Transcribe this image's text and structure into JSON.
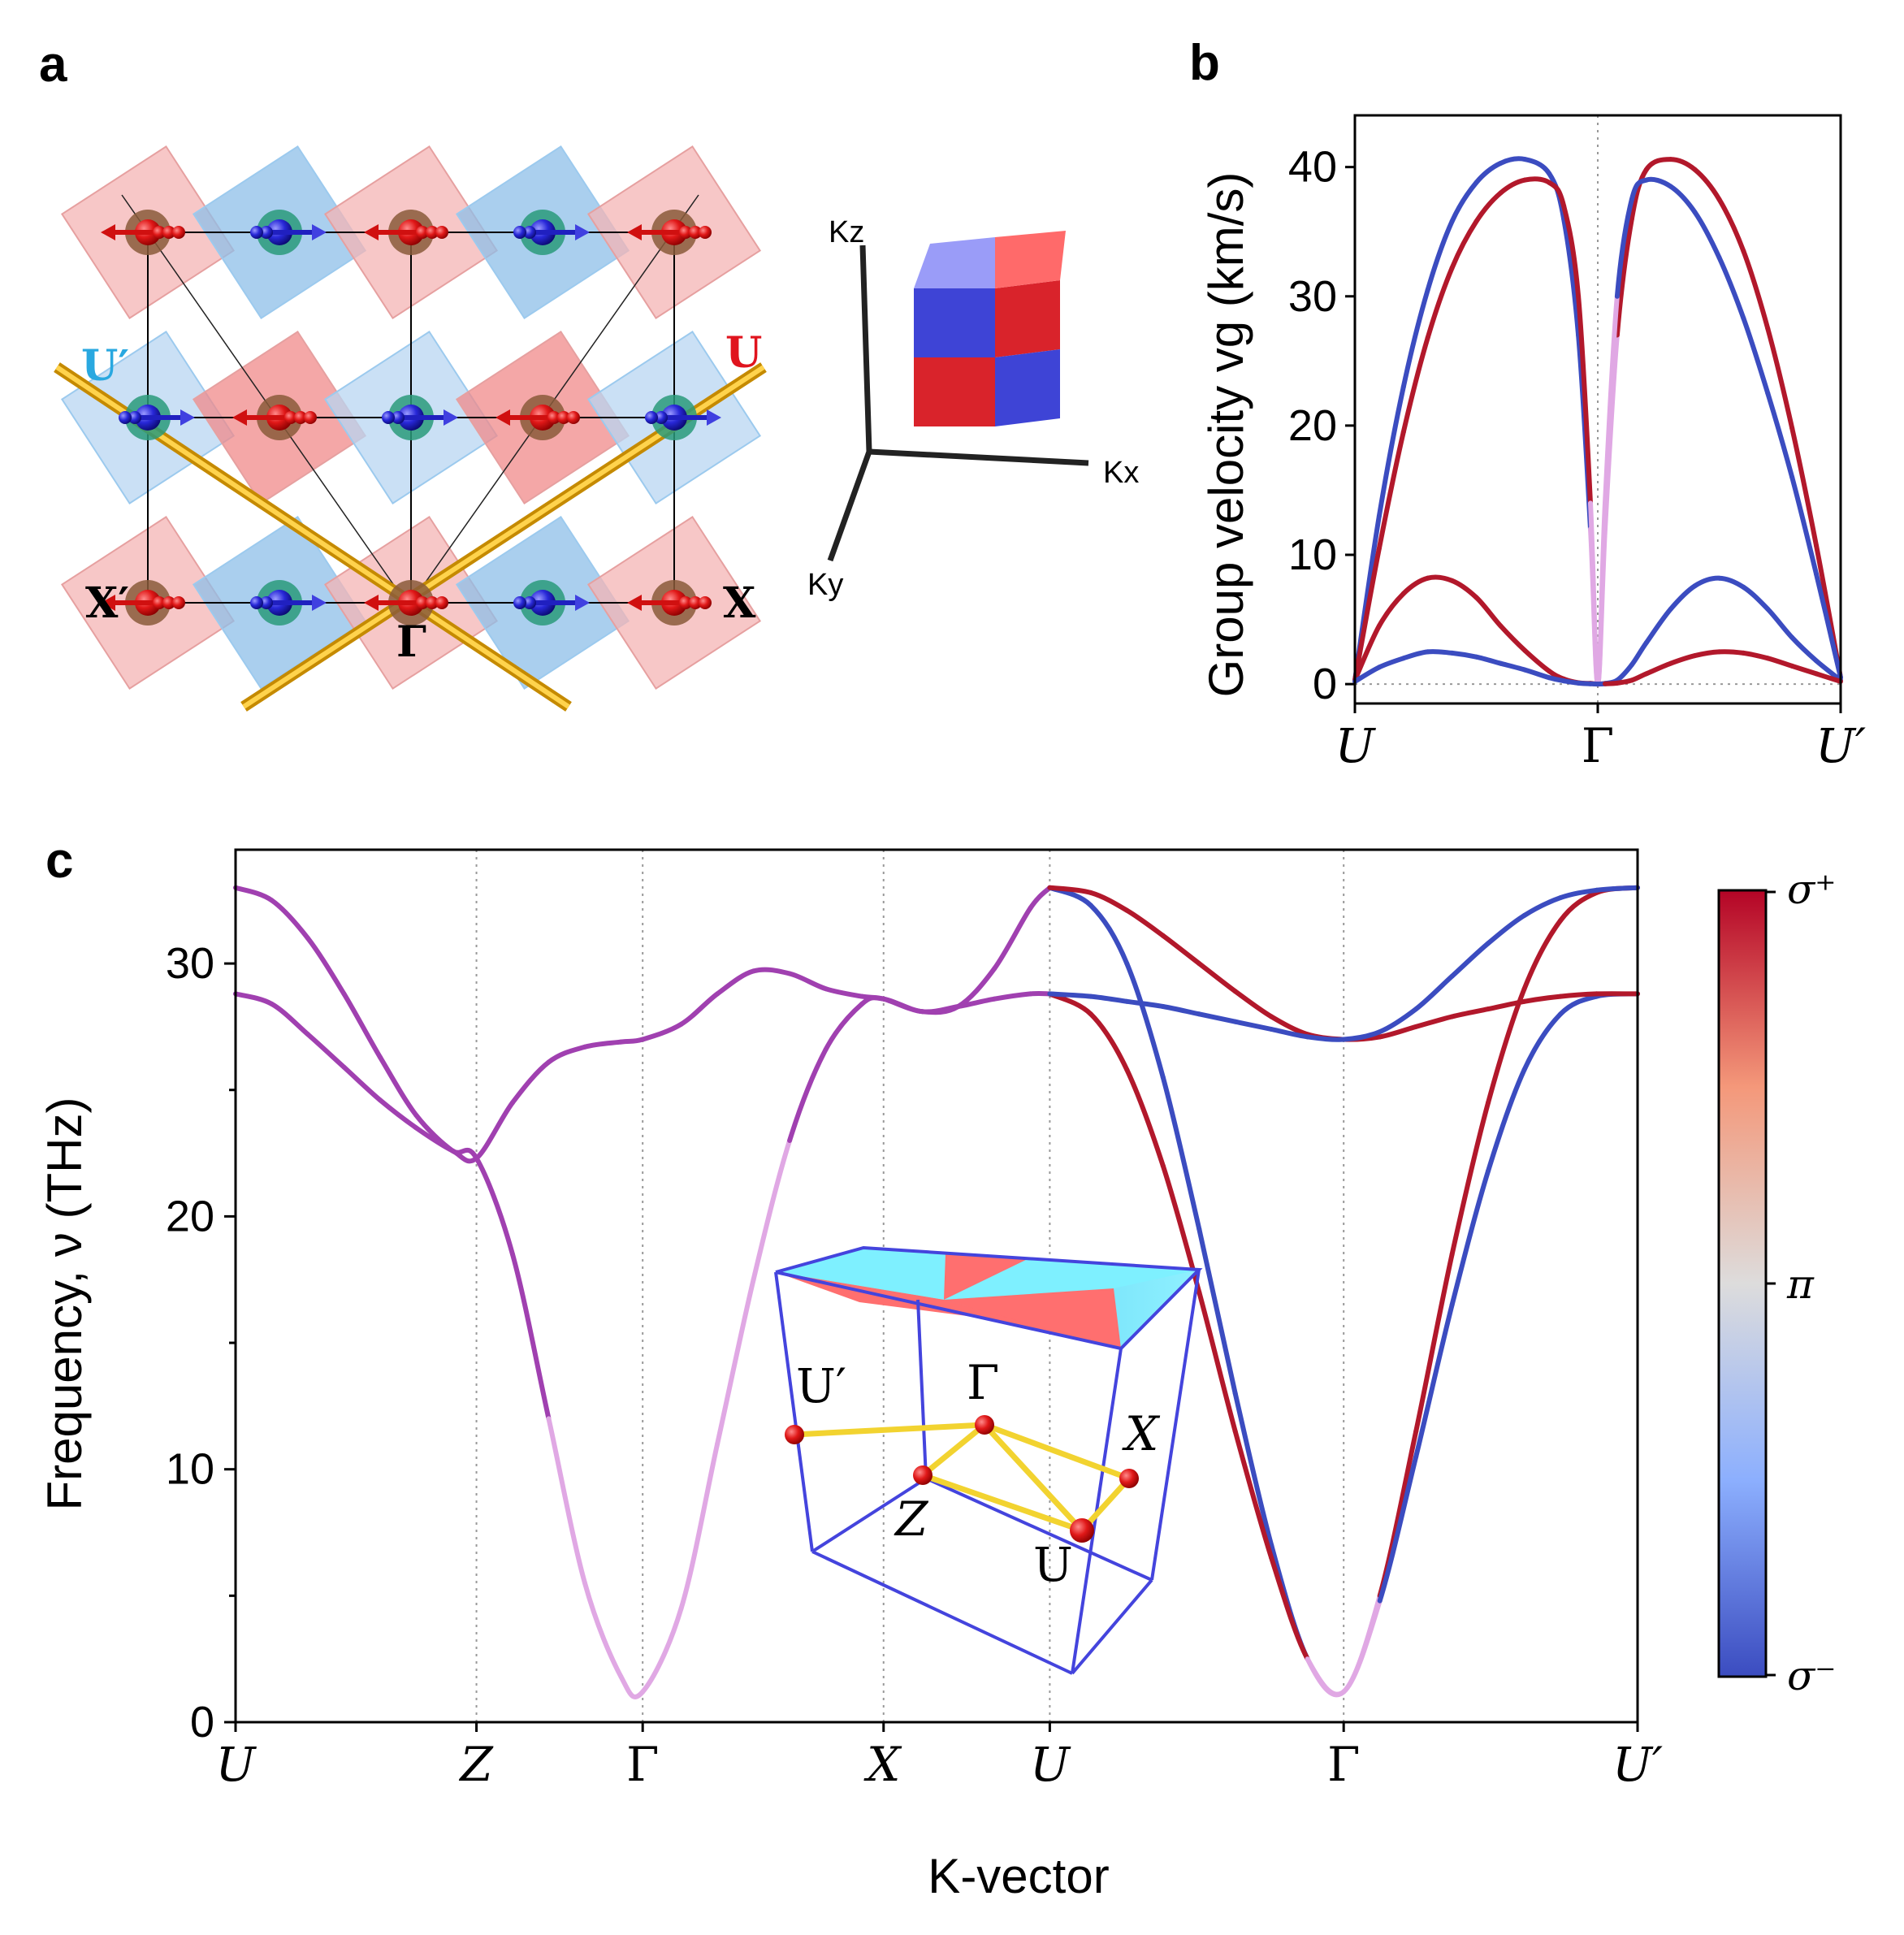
{
  "panels": {
    "a": "a",
    "b": "b",
    "c": "c"
  },
  "lattice": {
    "labels": {
      "U_prime": "U′",
      "U": "U",
      "X_prime": "X′",
      "X": "X",
      "Gamma": "Γ"
    },
    "colors": {
      "u_prime": "#29a8e0",
      "u": "#e0141e"
    }
  },
  "kaxes": {
    "kz": "Kz",
    "kx": "Kx",
    "ky": "Ky"
  },
  "colors": {
    "sigma_plus": "#b2182b",
    "sigma_minus": "#3b4cc0",
    "mixed": "#a040b0",
    "pale_mixed": "#e0a8e4"
  },
  "chart_data": [
    {
      "id": "b",
      "type": "line",
      "ylabel": "Group velocity vg (km/s)",
      "xlabel": "",
      "categories": [
        "U",
        "Γ",
        "U′"
      ],
      "ylim": [
        -1.5,
        44
      ],
      "yticks": [
        0,
        10,
        20,
        30,
        40
      ],
      "x": [
        0,
        0.1,
        0.2,
        0.3,
        0.4,
        0.5,
        0.6,
        0.7,
        0.8,
        0.86,
        0.92,
        0.97,
        1.0,
        1.03,
        1.08,
        1.14,
        1.2,
        1.3,
        1.4,
        1.5,
        1.6,
        1.7,
        1.8,
        1.9,
        2.0
      ],
      "series": [
        {
          "values": [
            0.3,
            13,
            23,
            30.5,
            35.8,
            38.8,
            40.3,
            40.6,
            39.5,
            36,
            27,
            12,
            0,
            12,
            27,
            36,
            39.8,
            40.6,
            39.8,
            37.5,
            33.5,
            27.5,
            19.8,
            10.7,
            0.5
          ],
          "colors": [
            "sigma_minus",
            "sigma_minus",
            "sigma_minus",
            "sigma_minus",
            "sigma_minus",
            "sigma_minus",
            "sigma_minus",
            "sigma_minus",
            "sigma_minus",
            "sigma_minus",
            "sigma_minus",
            "pale_mixed",
            "pale_mixed",
            "pale_mixed",
            "sigma_plus",
            "sigma_plus",
            "sigma_plus",
            "sigma_plus",
            "sigma_plus",
            "sigma_plus",
            "sigma_plus",
            "sigma_plus",
            "sigma_plus",
            "sigma_plus",
            "sigma_plus"
          ]
        },
        {
          "values": [
            0.3,
            10.5,
            19.5,
            26.8,
            32.2,
            35.8,
            38,
            39,
            38.8,
            37,
            30,
            14,
            0,
            14,
            30,
            37.5,
            39,
            38.5,
            36.5,
            33,
            28.3,
            22.5,
            16,
            8.5,
            0.5
          ],
          "colors": [
            "sigma_plus",
            "sigma_plus",
            "sigma_plus",
            "sigma_plus",
            "sigma_plus",
            "sigma_plus",
            "sigma_plus",
            "sigma_plus",
            "sigma_plus",
            "sigma_plus",
            "sigma_plus",
            "pale_mixed",
            "pale_mixed",
            "pale_mixed",
            "sigma_minus",
            "sigma_minus",
            "sigma_minus",
            "sigma_minus",
            "sigma_minus",
            "sigma_minus",
            "sigma_minus",
            "sigma_minus",
            "sigma_minus",
            "sigma_minus",
            "sigma_minus"
          ]
        },
        {
          "values": [
            0.3,
            4.5,
            7,
            8.2,
            8,
            6.7,
            4.5,
            2.6,
            1,
            0.4,
            0.1,
            0.05,
            0,
            0.05,
            0.3,
            1.5,
            3.2,
            5.8,
            7.6,
            8.2,
            7.5,
            5.8,
            3.6,
            1.8,
            0.3
          ],
          "colors": [
            "sigma_plus",
            "sigma_plus",
            "sigma_plus",
            "sigma_plus",
            "sigma_plus",
            "sigma_plus",
            "sigma_plus",
            "sigma_plus",
            "sigma_plus",
            "sigma_plus",
            "sigma_plus",
            "sigma_plus",
            "sigma_plus",
            "sigma_minus",
            "sigma_minus",
            "sigma_minus",
            "sigma_minus",
            "sigma_minus",
            "sigma_minus",
            "sigma_minus",
            "sigma_minus",
            "sigma_minus",
            "sigma_minus",
            "sigma_minus",
            "sigma_minus"
          ]
        },
        {
          "values": [
            0.2,
            1.3,
            2,
            2.5,
            2.4,
            2.1,
            1.6,
            1.1,
            0.5,
            0.25,
            0.08,
            0.02,
            0,
            0.02,
            0.08,
            0.3,
            0.8,
            1.6,
            2.2,
            2.5,
            2.4,
            2,
            1.4,
            0.8,
            0.2
          ],
          "colors": [
            "sigma_minus",
            "sigma_minus",
            "sigma_minus",
            "sigma_minus",
            "sigma_minus",
            "sigma_minus",
            "sigma_minus",
            "sigma_minus",
            "sigma_minus",
            "sigma_minus",
            "sigma_minus",
            "sigma_minus",
            "sigma_minus",
            "sigma_plus",
            "sigma_plus",
            "sigma_plus",
            "sigma_plus",
            "sigma_plus",
            "sigma_plus",
            "sigma_plus",
            "sigma_plus",
            "sigma_plus",
            "sigma_plus",
            "sigma_plus",
            "sigma_plus"
          ]
        }
      ]
    },
    {
      "id": "c",
      "type": "line",
      "ylabel": "Frequency, ν (THz)",
      "xlabel": "K-vector",
      "ylim": [
        0,
        34.5
      ],
      "yticks": [
        0,
        10,
        20,
        30
      ],
      "categories": [
        "U",
        "Z",
        "Γ",
        "X",
        "U",
        "Γ",
        "U′"
      ],
      "k_positions": [
        0,
        1,
        1.69,
        2.69,
        3.38,
        4.6,
        5.82
      ],
      "series": [
        {
          "x": [
            0,
            0.15,
            0.3,
            0.45,
            0.6,
            0.75,
            0.9,
            1.0,
            1.15,
            1.3,
            1.45,
            1.6,
            1.69,
            1.85,
            2.0,
            2.15,
            2.3,
            2.45,
            2.6,
            2.69,
            2.85,
            3.0,
            3.15,
            3.3,
            3.38
          ],
          "values": [
            33,
            32.5,
            31,
            28.8,
            26.3,
            24,
            22.6,
            22.3,
            18.5,
            12,
            5.5,
            1.8,
            1.2,
            4.5,
            11,
            17.5,
            23,
            26.6,
            28.4,
            28.6,
            28.1,
            28.3,
            29.8,
            32.2,
            33
          ],
          "colors": [
            "mixed",
            "mixed",
            "mixed",
            "mixed",
            "mixed",
            "mixed",
            "mixed",
            "mixed",
            "mixed",
            "pale_mixed",
            "pale_mixed",
            "pale_mixed",
            "pale_mixed",
            "pale_mixed",
            "pale_mixed",
            "pale_mixed",
            "mixed",
            "mixed",
            "mixed",
            "mixed",
            "mixed",
            "mixed",
            "mixed",
            "mixed",
            "mixed"
          ]
        },
        {
          "x": [
            0,
            0.15,
            0.3,
            0.45,
            0.6,
            0.75,
            0.9,
            1.0,
            1.15,
            1.3,
            1.45,
            1.6,
            1.69,
            1.85,
            2.0,
            2.15,
            2.3,
            2.45,
            2.6,
            2.69,
            2.85,
            3.0,
            3.15,
            3.3,
            3.38
          ],
          "values": [
            28.8,
            28.4,
            27.2,
            25.9,
            24.6,
            23.5,
            22.6,
            22.3,
            24.5,
            26.1,
            26.7,
            26.9,
            27,
            27.6,
            28.8,
            29.7,
            29.6,
            29,
            28.7,
            28.6,
            28.1,
            28.3,
            28.6,
            28.8,
            28.8
          ],
          "colors": [
            "mixed",
            "mixed",
            "mixed",
            "mixed",
            "mixed",
            "mixed",
            "mixed",
            "mixed",
            "mixed",
            "mixed",
            "mixed",
            "mixed",
            "mixed",
            "mixed",
            "mixed",
            "mixed",
            "mixed",
            "mixed",
            "mixed",
            "mixed",
            "mixed",
            "mixed",
            "mixed",
            "mixed",
            "mixed"
          ]
        },
        {
          "x": [
            3.38,
            3.55,
            3.7,
            3.85,
            4.0,
            4.15,
            4.3,
            4.45,
            4.6,
            4.75,
            4.9,
            5.05,
            5.2,
            5.35,
            5.5,
            5.65,
            5.82
          ],
          "values": [
            33,
            32.3,
            30,
            25.5,
            19.5,
            13,
            7,
            2.5,
            1.2,
            5,
            11.5,
            18.5,
            24.5,
            29,
            31.7,
            32.8,
            33
          ],
          "colors": [
            "sigma_minus",
            "sigma_minus",
            "sigma_minus",
            "sigma_minus",
            "sigma_minus",
            "sigma_minus",
            "sigma_minus",
            "pale_mixed",
            "pale_mixed",
            "sigma_plus",
            "sigma_plus",
            "sigma_plus",
            "sigma_plus",
            "sigma_plus",
            "sigma_plus",
            "sigma_plus",
            "sigma_plus"
          ]
        },
        {
          "x": [
            3.38,
            3.55,
            3.7,
            3.85,
            4.0,
            4.15,
            4.3,
            4.45,
            4.6,
            4.75,
            4.9,
            5.05,
            5.2,
            5.35,
            5.5,
            5.65,
            5.82
          ],
          "values": [
            28.8,
            28,
            25.8,
            22,
            17,
            11.5,
            6.5,
            2.5,
            1.2,
            4.8,
            10.5,
            16.5,
            21.8,
            25.8,
            28,
            28.7,
            28.8
          ],
          "colors": [
            "sigma_plus",
            "sigma_plus",
            "sigma_plus",
            "sigma_plus",
            "sigma_plus",
            "sigma_plus",
            "sigma_plus",
            "pale_mixed",
            "pale_mixed",
            "sigma_minus",
            "sigma_minus",
            "sigma_minus",
            "sigma_minus",
            "sigma_minus",
            "sigma_minus",
            "sigma_minus",
            "sigma_minus"
          ]
        },
        {
          "x": [
            3.38,
            3.55,
            3.7,
            3.85,
            4.0,
            4.15,
            4.3,
            4.45,
            4.6,
            4.75,
            4.9,
            5.05,
            5.2,
            5.35,
            5.5,
            5.65,
            5.82
          ],
          "values": [
            33,
            32.8,
            32.1,
            31.1,
            30,
            28.9,
            27.9,
            27.2,
            27,
            27.1,
            27.5,
            27.9,
            28.2,
            28.5,
            28.7,
            28.8,
            28.8
          ],
          "colors": [
            "sigma_plus",
            "sigma_plus",
            "sigma_plus",
            "sigma_plus",
            "sigma_plus",
            "sigma_plus",
            "sigma_plus",
            "sigma_plus",
            "sigma_plus",
            "sigma_plus",
            "sigma_plus",
            "sigma_plus",
            "sigma_plus",
            "sigma_plus",
            "sigma_plus",
            "sigma_plus",
            "sigma_plus"
          ]
        },
        {
          "x": [
            3.38,
            3.55,
            3.7,
            3.85,
            4.0,
            4.15,
            4.3,
            4.45,
            4.6,
            4.75,
            4.9,
            5.05,
            5.2,
            5.35,
            5.5,
            5.65,
            5.82
          ],
          "values": [
            28.8,
            28.7,
            28.5,
            28.3,
            28,
            27.7,
            27.4,
            27.1,
            27,
            27.3,
            28.2,
            29.5,
            30.8,
            31.9,
            32.6,
            32.9,
            33
          ],
          "colors": [
            "sigma_minus",
            "sigma_minus",
            "sigma_minus",
            "sigma_minus",
            "sigma_minus",
            "sigma_minus",
            "sigma_minus",
            "sigma_minus",
            "sigma_minus",
            "sigma_minus",
            "sigma_minus",
            "sigma_minus",
            "sigma_minus",
            "sigma_minus",
            "sigma_minus",
            "sigma_minus",
            "sigma_minus"
          ]
        }
      ],
      "colorbar": {
        "labels": [
          "σ⁺",
          "π",
          "σ⁻"
        ]
      },
      "inset": {
        "labels": {
          "U_prime": "U′",
          "Gamma": "Γ",
          "X": "X",
          "Z": "Z",
          "U": "U"
        }
      }
    }
  ]
}
